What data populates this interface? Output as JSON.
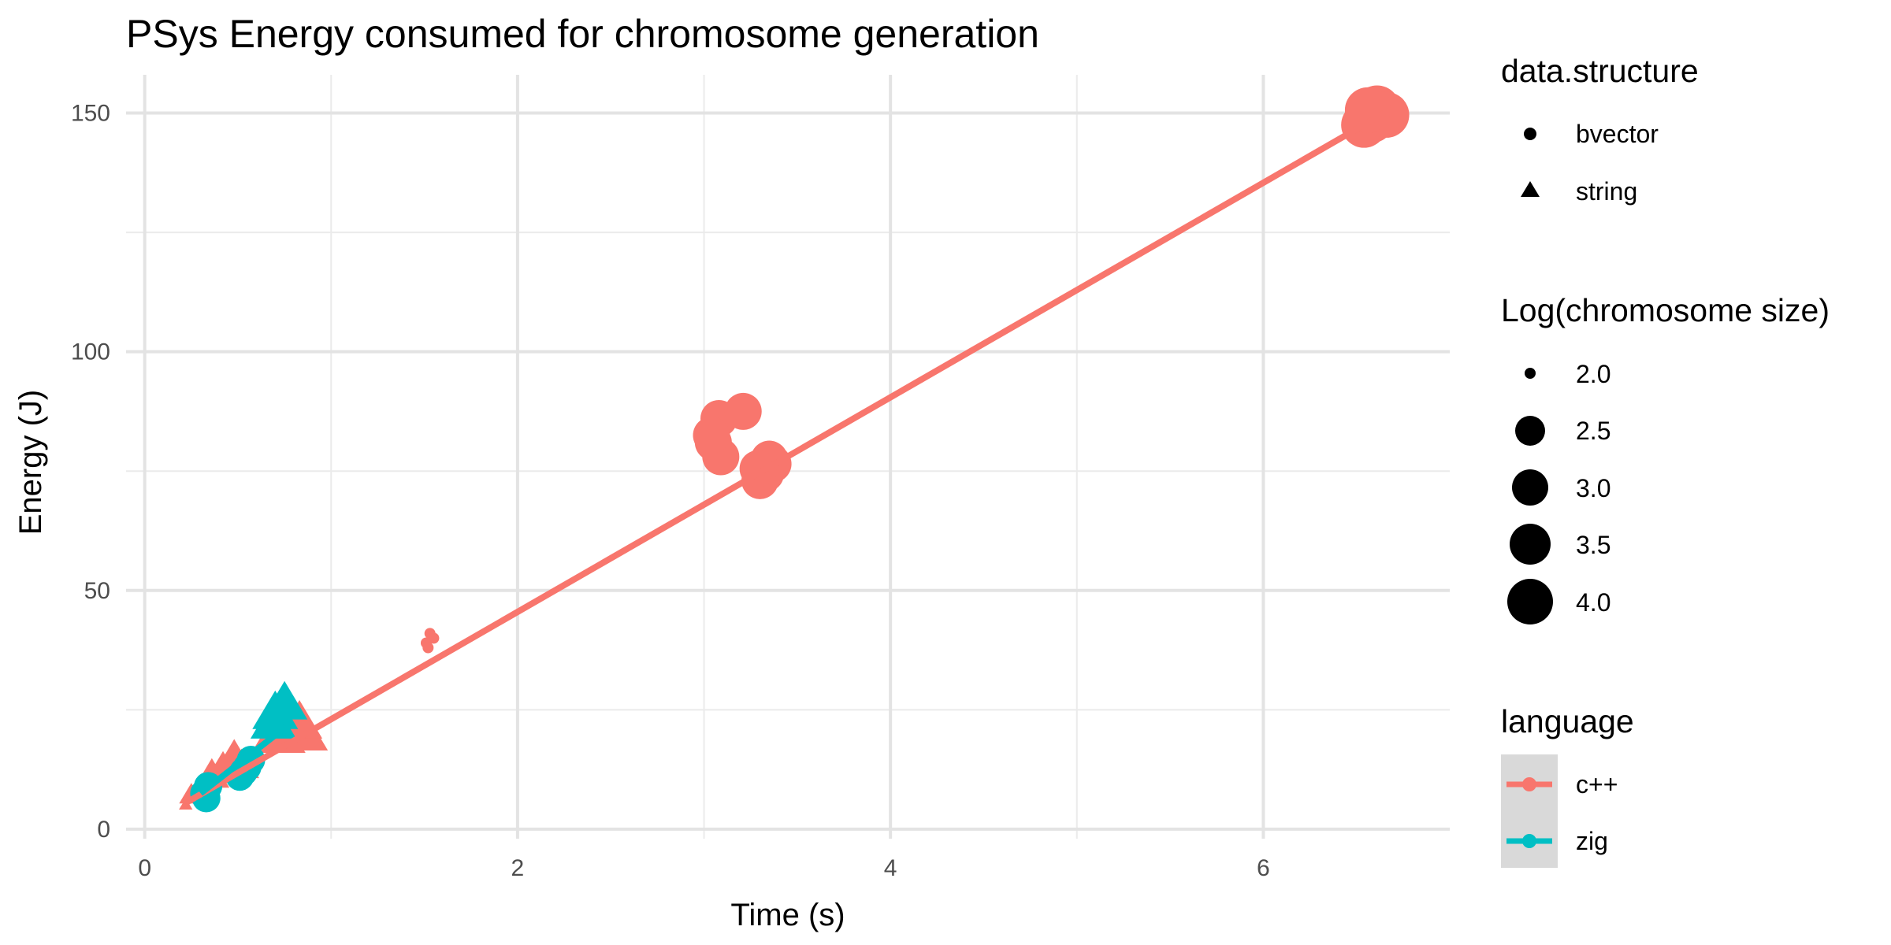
{
  "chart_data": {
    "type": "scatter",
    "title": "PSys Energy consumed for chromosome generation",
    "xlabel": "Time (s)",
    "ylabel": "Energy (J)",
    "xlim": [
      -0.1,
      7
    ],
    "ylim": [
      -2,
      158
    ],
    "x_ticks": [
      0,
      2,
      4,
      6
    ],
    "y_ticks": [
      0,
      50,
      100,
      150
    ],
    "x_tick_labels": [
      "0",
      "2",
      "4",
      "6"
    ],
    "y_tick_labels": [
      "0",
      "50",
      "100",
      "150"
    ],
    "grid": true,
    "legend_position": "right",
    "colors": {
      "c++": "#F8766D",
      "zig": "#00BFC4"
    },
    "legends": {
      "shape": {
        "title": "data.structure",
        "items": [
          {
            "label": "bvector",
            "shape": "circle"
          },
          {
            "label": "string",
            "shape": "triangle"
          }
        ]
      },
      "size": {
        "title": "Log(chromosome size)",
        "items": [
          {
            "label": "2.0",
            "value": 2.0
          },
          {
            "label": "2.5",
            "value": 2.5
          },
          {
            "label": "3.0",
            "value": 3.0
          },
          {
            "label": "3.5",
            "value": 3.5
          },
          {
            "label": "4.0",
            "value": 4.0
          }
        ]
      },
      "color": {
        "title": "language",
        "items": [
          {
            "label": "c++",
            "key": "c++"
          },
          {
            "label": "zig",
            "key": "zig"
          }
        ]
      }
    },
    "series": [
      {
        "language": "c++",
        "fit_line": {
          "x": [
            0.22,
            6.65
          ],
          "y": [
            5.5,
            150.0
          ]
        },
        "points": [
          {
            "x": 6.58,
            "y": 148.5,
            "size": 4.0,
            "shape": "circle"
          },
          {
            "x": 6.63,
            "y": 150.2,
            "size": 4.0,
            "shape": "circle"
          },
          {
            "x": 6.54,
            "y": 147.5,
            "size": 4.0,
            "shape": "circle"
          },
          {
            "x": 6.61,
            "y": 151.0,
            "size": 4.0,
            "shape": "circle"
          },
          {
            "x": 6.66,
            "y": 149.6,
            "size": 4.0,
            "shape": "circle"
          },
          {
            "x": 6.56,
            "y": 150.6,
            "size": 4.0,
            "shape": "circle"
          },
          {
            "x": 3.08,
            "y": 86.0,
            "size": 3.5,
            "shape": "circle"
          },
          {
            "x": 3.21,
            "y": 87.5,
            "size": 3.5,
            "shape": "circle"
          },
          {
            "x": 3.05,
            "y": 81.0,
            "size": 3.5,
            "shape": "circle"
          },
          {
            "x": 3.09,
            "y": 78.0,
            "size": 3.5,
            "shape": "circle"
          },
          {
            "x": 3.04,
            "y": 82.5,
            "size": 3.5,
            "shape": "circle"
          },
          {
            "x": 3.37,
            "y": 76.5,
            "size": 3.5,
            "shape": "circle"
          },
          {
            "x": 3.33,
            "y": 74.5,
            "size": 3.5,
            "shape": "circle"
          },
          {
            "x": 3.3,
            "y": 73.0,
            "size": 3.5,
            "shape": "circle"
          },
          {
            "x": 3.35,
            "y": 77.5,
            "size": 3.5,
            "shape": "circle"
          },
          {
            "x": 3.29,
            "y": 75.5,
            "size": 3.5,
            "shape": "circle"
          },
          {
            "x": 1.53,
            "y": 41.0,
            "size": 2.0,
            "shape": "circle"
          },
          {
            "x": 1.51,
            "y": 39.0,
            "size": 2.0,
            "shape": "circle"
          },
          {
            "x": 1.52,
            "y": 38.0,
            "size": 2.0,
            "shape": "circle"
          },
          {
            "x": 1.55,
            "y": 40.0,
            "size": 2.0,
            "shape": "circle"
          },
          {
            "x": 0.22,
            "y": 5.0,
            "size": 2.0,
            "shape": "triangle"
          },
          {
            "x": 0.25,
            "y": 7.0,
            "size": 2.5,
            "shape": "triangle"
          },
          {
            "x": 0.31,
            "y": 9.0,
            "size": 2.5,
            "shape": "triangle"
          },
          {
            "x": 0.36,
            "y": 11.0,
            "size": 3.0,
            "shape": "triangle"
          },
          {
            "x": 0.42,
            "y": 12.5,
            "size": 3.0,
            "shape": "triangle"
          },
          {
            "x": 0.48,
            "y": 15.0,
            "size": 3.0,
            "shape": "triangle"
          },
          {
            "x": 0.52,
            "y": 13.0,
            "size": 3.0,
            "shape": "triangle"
          },
          {
            "x": 0.71,
            "y": 20.0,
            "size": 3.5,
            "shape": "triangle"
          },
          {
            "x": 0.77,
            "y": 23.0,
            "size": 3.5,
            "shape": "triangle"
          },
          {
            "x": 0.81,
            "y": 21.0,
            "size": 3.5,
            "shape": "triangle"
          },
          {
            "x": 0.86,
            "y": 19.5,
            "size": 3.5,
            "shape": "triangle"
          },
          {
            "x": 0.74,
            "y": 19.0,
            "size": 3.5,
            "shape": "triangle"
          },
          {
            "x": 0.83,
            "y": 22.0,
            "size": 3.5,
            "shape": "triangle"
          }
        ]
      },
      {
        "language": "zig",
        "fit_line": {
          "x": [
            0.3,
            0.76
          ],
          "y": [
            7.5,
            21.5
          ]
        },
        "points": [
          {
            "x": 0.32,
            "y": 7.5,
            "size": 3.0,
            "shape": "circle"
          },
          {
            "x": 0.34,
            "y": 9.0,
            "size": 3.0,
            "shape": "circle"
          },
          {
            "x": 0.33,
            "y": 6.5,
            "size": 3.0,
            "shape": "circle"
          },
          {
            "x": 0.51,
            "y": 11.0,
            "size": 3.0,
            "shape": "circle"
          },
          {
            "x": 0.55,
            "y": 13.0,
            "size": 3.0,
            "shape": "circle"
          },
          {
            "x": 0.57,
            "y": 14.5,
            "size": 3.0,
            "shape": "circle"
          },
          {
            "x": 0.53,
            "y": 12.0,
            "size": 3.0,
            "shape": "circle"
          },
          {
            "x": 0.7,
            "y": 24.0,
            "size": 3.5,
            "shape": "triangle"
          },
          {
            "x": 0.75,
            "y": 26.0,
            "size": 3.5,
            "shape": "triangle"
          },
          {
            "x": 0.69,
            "y": 22.0,
            "size": 3.5,
            "shape": "triangle"
          }
        ]
      }
    ]
  }
}
